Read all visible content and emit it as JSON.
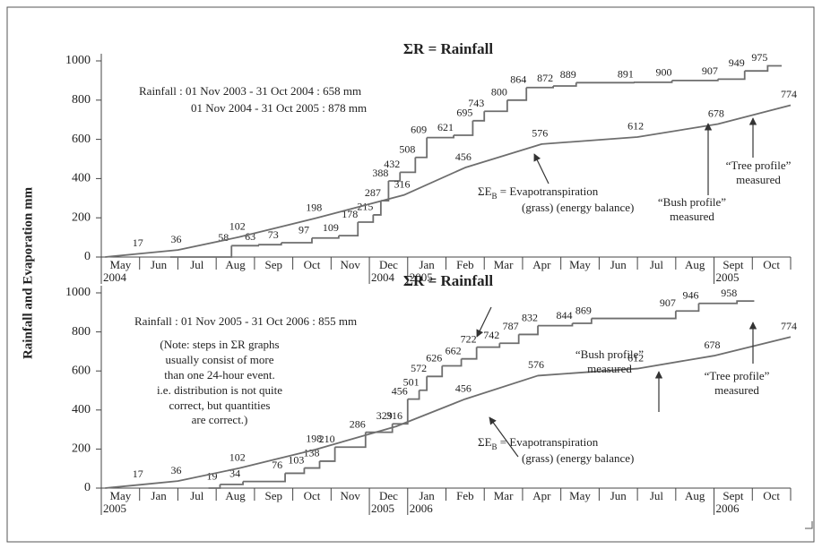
{
  "ylabel": "Rainfall and Evaporation mm",
  "chart_data": [
    {
      "type": "line",
      "categories": [
        "May",
        "Jun",
        "Jul",
        "Aug",
        "Sep",
        "Oct",
        "Nov",
        "Dec",
        "Jan",
        "Feb",
        "Mar",
        "Apr",
        "May",
        "Jun",
        "Jul",
        "Aug",
        "Sept",
        "Oct"
      ],
      "category_years": [
        "2004",
        null,
        null,
        null,
        null,
        null,
        null,
        "2004",
        "2005",
        null,
        null,
        null,
        null,
        null,
        null,
        null,
        "2005",
        null
      ],
      "xlim": [
        0,
        18
      ],
      "ylim": [
        0,
        1000
      ],
      "yticks": [
        0,
        200,
        400,
        600,
        800,
        1000
      ],
      "series": [
        {
          "name": "ΣR = Rainfall",
          "color": "#6e6e6e",
          "step": true,
          "x": [
            1.8,
            3.4,
            4.1,
            4.7,
            5.5,
            6.2,
            6.7,
            7.1,
            7.3,
            7.5,
            7.8,
            8.2,
            8.5,
            9.2,
            9.7,
            10.0,
            10.6,
            11.1,
            11.8,
            12.4,
            13.9,
            14.9,
            16.1,
            16.8,
            17.4
          ],
          "values": [
            0,
            58,
            63,
            73,
            97,
            109,
            178,
            215,
            287,
            388,
            432,
            508,
            609,
            621,
            695,
            743,
            800,
            864,
            872,
            889,
            891,
            900,
            907,
            949,
            975
          ],
          "value_labels": [
            null,
            "58",
            "63",
            "73",
            "97",
            "109",
            "178",
            "215",
            "287",
            "388",
            "432",
            "508",
            "609",
            "621",
            "695",
            "743",
            "800",
            "864",
            "872",
            "889",
            "891",
            "900",
            "907",
            "949",
            "975"
          ]
        },
        {
          "name": "ΣE",
          "name_sub": "B",
          "name_rest": " = Evapotranspiration",
          "color": "#6e6e6e",
          "x": [
            0.1,
            1.0,
            2.0,
            3.6,
            5.6,
            7.9,
            9.5,
            11.5,
            14.0,
            16.1,
            18.0
          ],
          "values": [
            0,
            17,
            36,
            102,
            198,
            316,
            456,
            576,
            612,
            678,
            774
          ],
          "value_labels": [
            null,
            "17",
            "36",
            "102",
            "198",
            "316",
            "456",
            "576",
            "612",
            "678",
            "774"
          ]
        }
      ],
      "annotations": [
        "Rainfall : 01 Nov 2003 - 31 Oct 2004 : 658 mm",
        "01 Nov 2004 - 31 Oct 2005 : 878 mm",
        "(grass) (energy balance)",
        "“Bush profile”",
        "measured",
        "“Tree profile”",
        "measured"
      ]
    },
    {
      "type": "line",
      "categories": [
        "May",
        "Jan",
        "Jul",
        "Aug",
        "Sep",
        "Oct",
        "Nov",
        "Dec",
        "Jan",
        "Feb",
        "Mar",
        "Apr",
        "May",
        "Jun",
        "Jul",
        "Aug",
        "Sept",
        "Oct"
      ],
      "category_years": [
        "2005",
        null,
        null,
        null,
        null,
        null,
        null,
        "2005",
        "2006",
        null,
        null,
        null,
        null,
        null,
        null,
        null,
        "2006",
        null
      ],
      "xlim": [
        0,
        18
      ],
      "ylim": [
        0,
        1000
      ],
      "yticks": [
        0,
        200,
        400,
        600,
        800,
        1000
      ],
      "series": [
        {
          "name": "ΣR = Rainfall",
          "color": "#6e6e6e",
          "step": true,
          "x": [
            2.8,
            3.1,
            3.7,
            4.8,
            5.3,
            5.7,
            6.1,
            6.9,
            7.6,
            8.0,
            8.3,
            8.5,
            8.9,
            9.4,
            9.8,
            10.4,
            10.9,
            11.4,
            12.3,
            12.8,
            15.0,
            15.6,
            16.6
          ],
          "values": [
            0,
            19,
            34,
            76,
            103,
            138,
            210,
            286,
            329,
            456,
            501,
            572,
            626,
            662,
            722,
            742,
            787,
            832,
            844,
            869,
            907,
            946,
            958
          ],
          "value_labels": [
            null,
            "19",
            "34",
            "76",
            "103",
            "138",
            "210",
            "286",
            "329",
            "456",
            "501",
            "572",
            "626",
            "662",
            "722",
            "742",
            "787",
            "832",
            "844",
            "869",
            "907",
            "946",
            "958"
          ]
        },
        {
          "name": "ΣE",
          "name_sub": "B",
          "name_rest": " = Evapotranspiration",
          "color": "#6e6e6e",
          "x": [
            0.1,
            1.0,
            2.0,
            3.6,
            5.6,
            7.7,
            9.5,
            11.4,
            14.0,
            16.0,
            18.0
          ],
          "values": [
            0,
            17,
            36,
            102,
            198,
            316,
            456,
            576,
            612,
            678,
            774
          ],
          "value_labels": [
            null,
            "17",
            "36",
            "102",
            "198",
            "316",
            "456",
            "576",
            "612",
            "678",
            "774"
          ]
        }
      ],
      "annotations": [
        "Rainfall : 01 Nov 2005 - 31 Oct 2006 : 855 mm",
        "(Note: steps in ΣR graphs",
        "usually consist of more",
        "than one 24-hour event.",
        "i.e. distribution is not quite",
        "correct, but quantities",
        "are correct.)",
        "(grass) (energy balance)",
        "“Bush profile”",
        "measured",
        "“Tree profile”",
        "measured"
      ]
    }
  ]
}
